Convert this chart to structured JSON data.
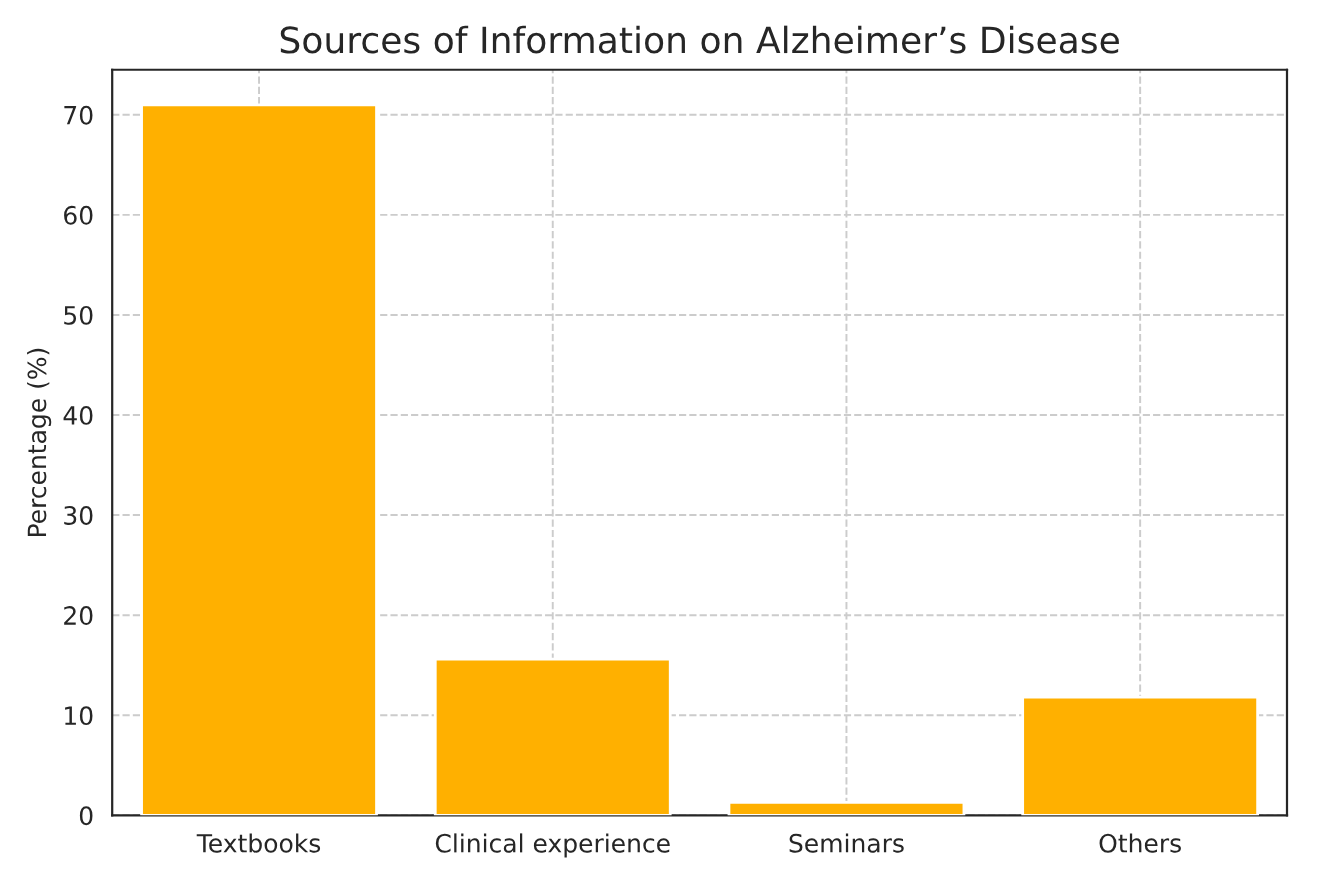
{
  "chart_data": {
    "type": "bar",
    "title": "Sources of Information on Alzheimer’s Disease",
    "ylabel": "Percentage (%)",
    "categories": [
      "Textbooks",
      "Clinical experience",
      "Seminars",
      "Others"
    ],
    "values": [
      71,
      15.6,
      1.3,
      11.8
    ],
    "color": "#ffb000",
    "ylim": [
      0,
      74.5
    ],
    "yticks": [
      0,
      10,
      20,
      30,
      40,
      50,
      60,
      70
    ],
    "grid": true
  }
}
